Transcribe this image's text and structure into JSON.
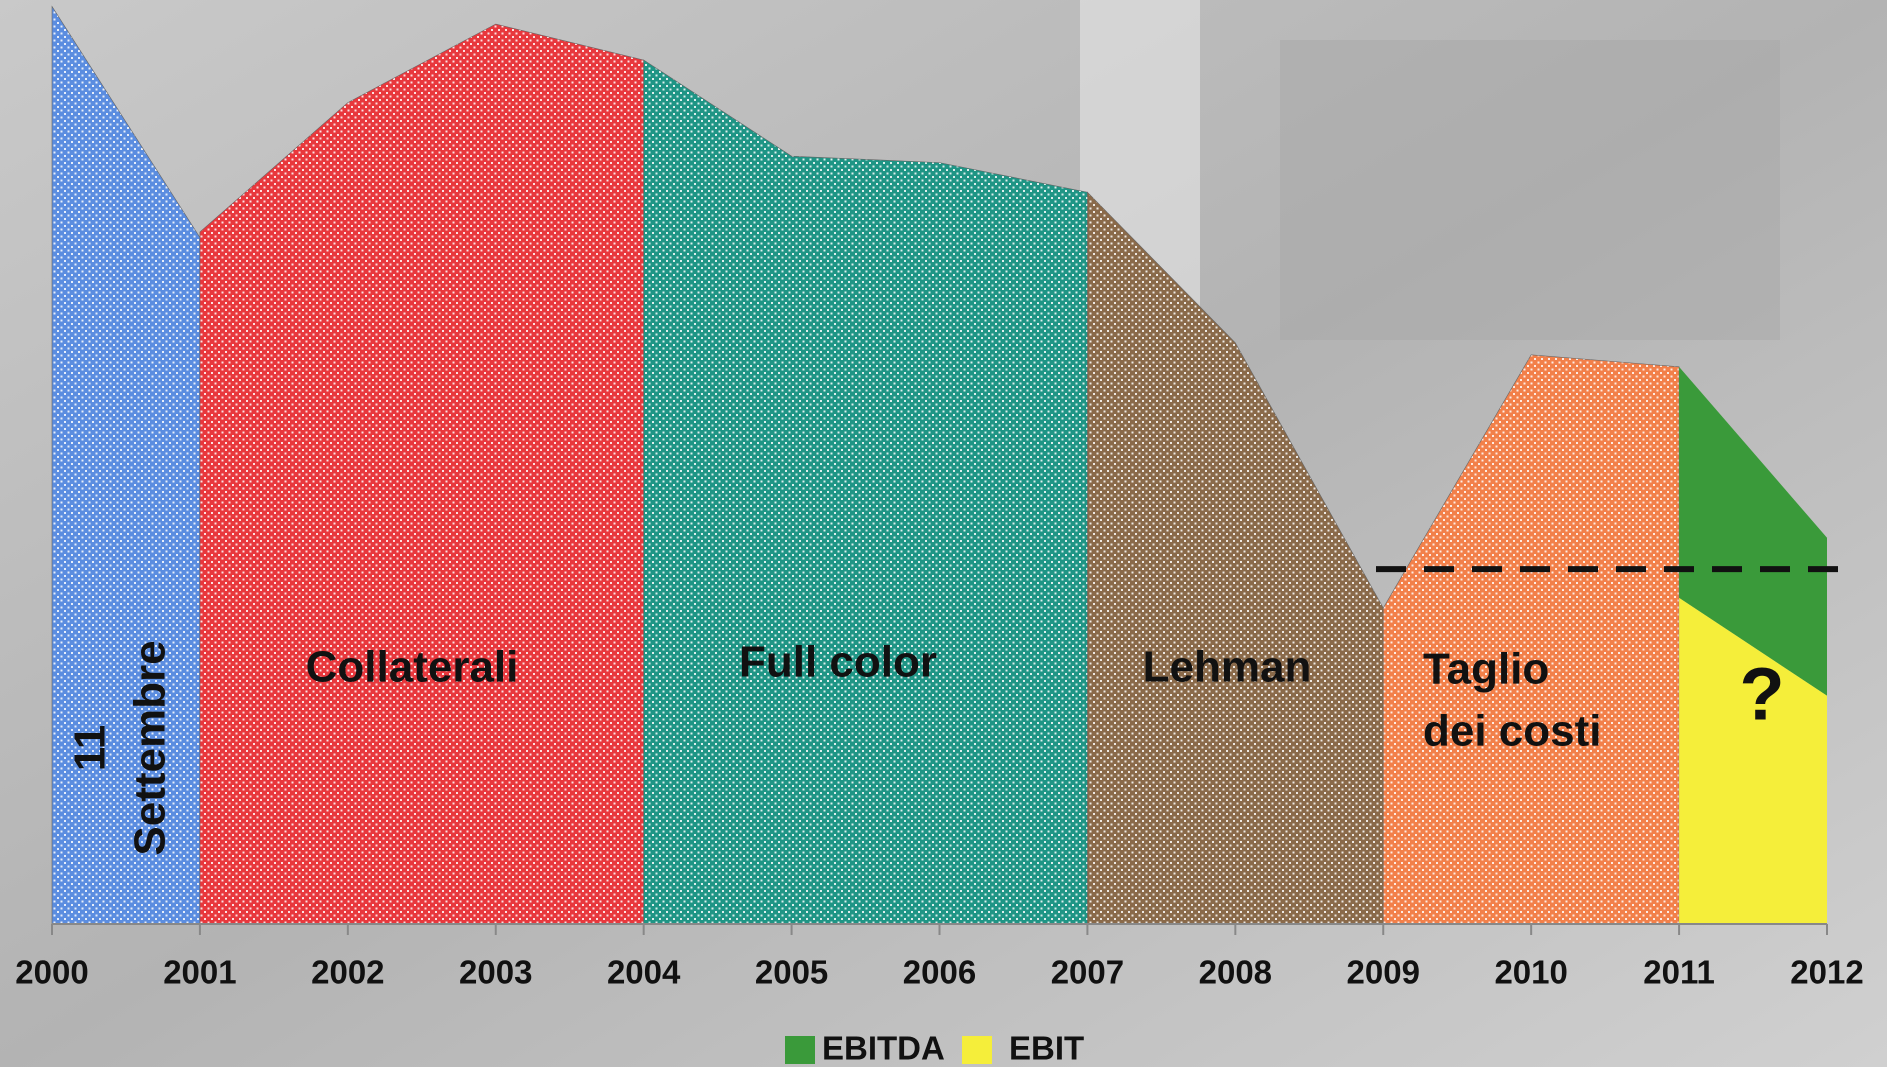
{
  "chart_data": {
    "type": "area",
    "xlim": [
      2000,
      2012
    ],
    "xticks": [
      2000,
      2001,
      2002,
      2003,
      2004,
      2005,
      2006,
      2007,
      2008,
      2009,
      2010,
      2011,
      2012
    ],
    "ylim": [
      0,
      100
    ],
    "eras": [
      {
        "lines": [
          "11",
          "Settembre"
        ],
        "color": "#5b8de0",
        "x": [
          2000,
          2001
        ],
        "values": [
          99.3,
          74.3
        ]
      },
      {
        "lines": [
          "Collaterali"
        ],
        "color": "#e8383d",
        "x": [
          2001,
          2002,
          2003,
          2004
        ],
        "values": [
          74.9,
          88.9,
          97.4,
          93.5
        ]
      },
      {
        "lines": [
          "Full color"
        ],
        "color": "#1f9585",
        "x": [
          2004,
          2005,
          2006,
          2007
        ],
        "values": [
          93.5,
          83.1,
          82.4,
          79.2
        ]
      },
      {
        "lines": [
          "Lehman"
        ],
        "color": "#8a6a4a",
        "x": [
          2007,
          2008,
          2009
        ],
        "values": [
          79.2,
          62.9,
          34.2
        ]
      },
      {
        "lines": [
          "Taglio",
          "dei costi"
        ],
        "color": "#f2804a",
        "x": [
          2009,
          2010,
          2011
        ],
        "values": [
          34.2,
          61.6,
          60.3
        ]
      }
    ],
    "series": [
      {
        "name": "EBITDA",
        "color": "#3a9a3a",
        "x": [
          2011,
          2012
        ],
        "values": [
          60.3,
          41.8
        ]
      },
      {
        "name": "EBIT",
        "color": "#f5ee3a",
        "x": [
          2011,
          2012
        ],
        "values": [
          35.3,
          24.7
        ]
      }
    ],
    "reference_line": 38.4,
    "annotation": "?"
  }
}
